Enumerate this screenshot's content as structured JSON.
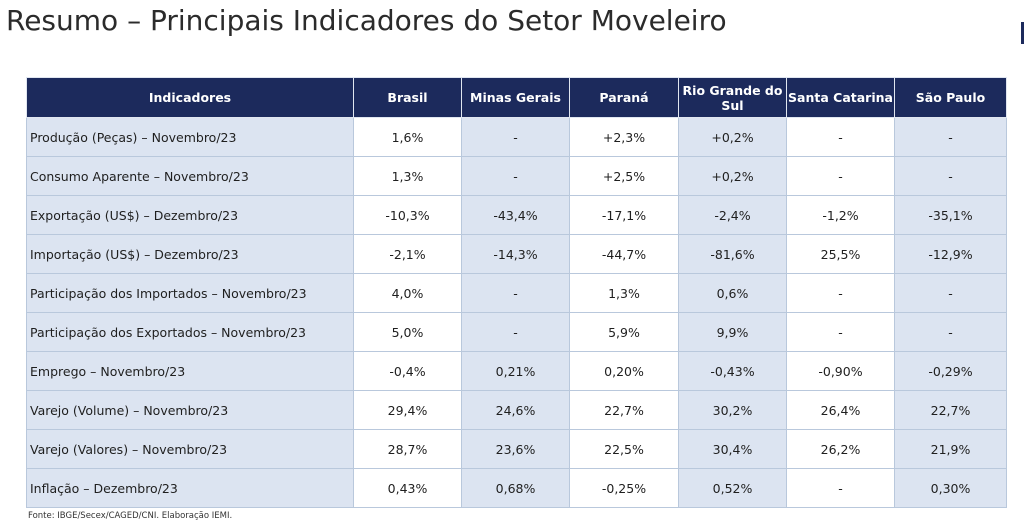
{
  "page": {
    "title": "Resumo – Principais Indicadores do Setor Moveleiro",
    "footer": "Fonte: IBGE/Secex/CAGED/CNI. Elaboração IEMI."
  },
  "table": {
    "headers": [
      "Indicadores",
      "Brasil",
      "Minas Gerais",
      "Paraná",
      "Rio Grande do Sul",
      "Santa Catarina",
      "São Paulo"
    ],
    "rows": [
      {
        "label": "Produção (Peças) – Novembro/23",
        "values": [
          "1,6%",
          "-",
          "+2,3%",
          "+0,2%",
          "-",
          "-"
        ]
      },
      {
        "label": "Consumo Aparente – Novembro/23",
        "values": [
          "1,3%",
          "-",
          "+2,5%",
          "+0,2%",
          "-",
          "-"
        ]
      },
      {
        "label": "Exportação (US$) – Dezembro/23",
        "values": [
          "-10,3%",
          "-43,4%",
          "-17,1%",
          "-2,4%",
          "-1,2%",
          "-35,1%"
        ]
      },
      {
        "label": "Importação (US$) – Dezembro/23",
        "values": [
          "-2,1%",
          "-14,3%",
          "-44,7%",
          "-81,6%",
          "25,5%",
          "-12,9%"
        ]
      },
      {
        "label": "Participação dos Importados – Novembro/23",
        "values": [
          "4,0%",
          "-",
          "1,3%",
          "0,6%",
          "-",
          "-"
        ]
      },
      {
        "label": "Participação dos Exportados – Novembro/23",
        "values": [
          "5,0%",
          "-",
          "5,9%",
          "9,9%",
          "-",
          "-"
        ]
      },
      {
        "label": "Emprego – Novembro/23",
        "values": [
          "-0,4%",
          "0,21%",
          "0,20%",
          "-0,43%",
          "-0,90%",
          "-0,29%"
        ]
      },
      {
        "label": "Varejo (Volume) – Novembro/23",
        "values": [
          "29,4%",
          "24,6%",
          "22,7%",
          "30,2%",
          "26,4%",
          "22,7%"
        ]
      },
      {
        "label": "Varejo (Valores) – Novembro/23",
        "values": [
          "28,7%",
          "23,6%",
          "22,5%",
          "30,4%",
          "26,2%",
          "21,9%"
        ]
      },
      {
        "label": "Inflação – Dezembro/23",
        "values": [
          "0,43%",
          "0,68%",
          "-0,25%",
          "0,52%",
          "-",
          "0,30%"
        ]
      }
    ]
  },
  "colors": {
    "header_bg": "#1c2a5c",
    "header_text": "#ffffff",
    "shaded_cell": "#dce4f1",
    "plain_cell": "#ffffff",
    "grid_line": "#b9c8dc"
  }
}
